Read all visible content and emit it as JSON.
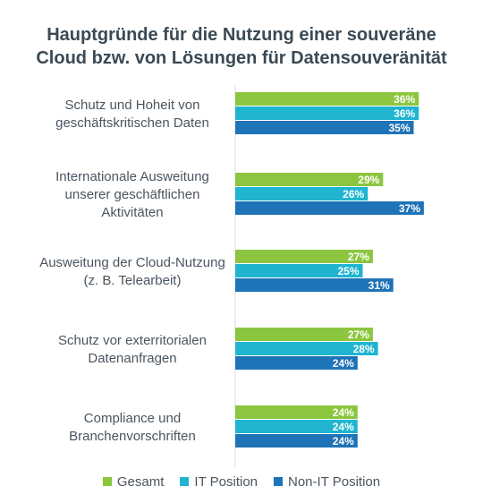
{
  "title": {
    "line1": "Hauptgründe für die Nutzung einer souveräne",
    "line2": "Cloud bzw. von Lösungen für Datensouveränität"
  },
  "colors": {
    "gesamt": "#8cc63f",
    "it": "#1fb5d0",
    "non_it": "#1f73b7",
    "text": "#4a5560",
    "axis": "#d9dde0"
  },
  "chart_data": {
    "type": "bar",
    "orientation": "horizontal",
    "title": "Hauptgründe für die Nutzung einer souveräne Cloud bzw. von Lösungen für Datensouveränität",
    "categories": [
      [
        "Schutz und Hoheit von",
        "geschäftskritischen Daten"
      ],
      [
        "Internationale Ausweitung",
        "unserer geschäftlichen",
        "Aktivitäten"
      ],
      [
        "Ausweitung der Cloud-Nutzung",
        "(z. B. Telearbeit)"
      ],
      [
        "Schutz vor exterritorialen",
        "Datenanfragen"
      ],
      [
        "Compliance und",
        "Branchenvorschriften"
      ]
    ],
    "series": [
      {
        "name": "Gesamt",
        "color": "#8cc63f",
        "values": [
          36,
          29,
          27,
          27,
          24
        ]
      },
      {
        "name": "IT Position",
        "color": "#1fb5d0",
        "values": [
          36,
          26,
          25,
          28,
          24
        ]
      },
      {
        "name": "Non-IT Position",
        "color": "#1f73b7",
        "values": [
          35,
          37,
          31,
          24,
          24
        ]
      }
    ],
    "value_suffix": "%",
    "xlim": [
      0,
      45
    ],
    "grid": false,
    "legend_position": "bottom"
  }
}
